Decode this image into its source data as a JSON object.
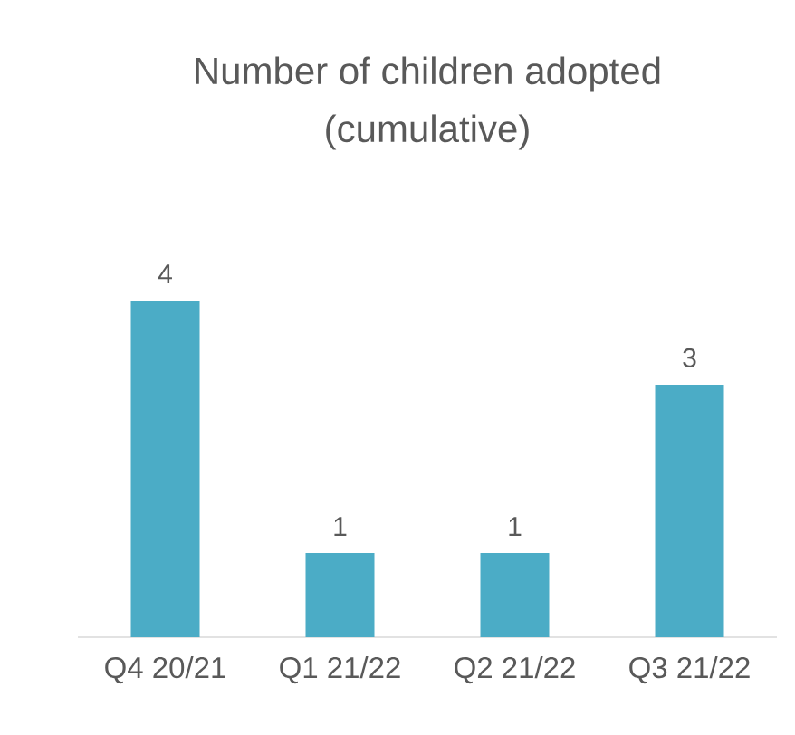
{
  "chart_data": {
    "type": "bar",
    "title": "Number of children adopted (cumulative)",
    "categories": [
      "Q4 20/21",
      "Q1 21/22",
      "Q2 21/22",
      "Q3 21/22"
    ],
    "values": [
      4,
      1,
      1,
      3
    ],
    "color": "#4bacc6",
    "data_labels": true,
    "tick_labels": "x"
  }
}
